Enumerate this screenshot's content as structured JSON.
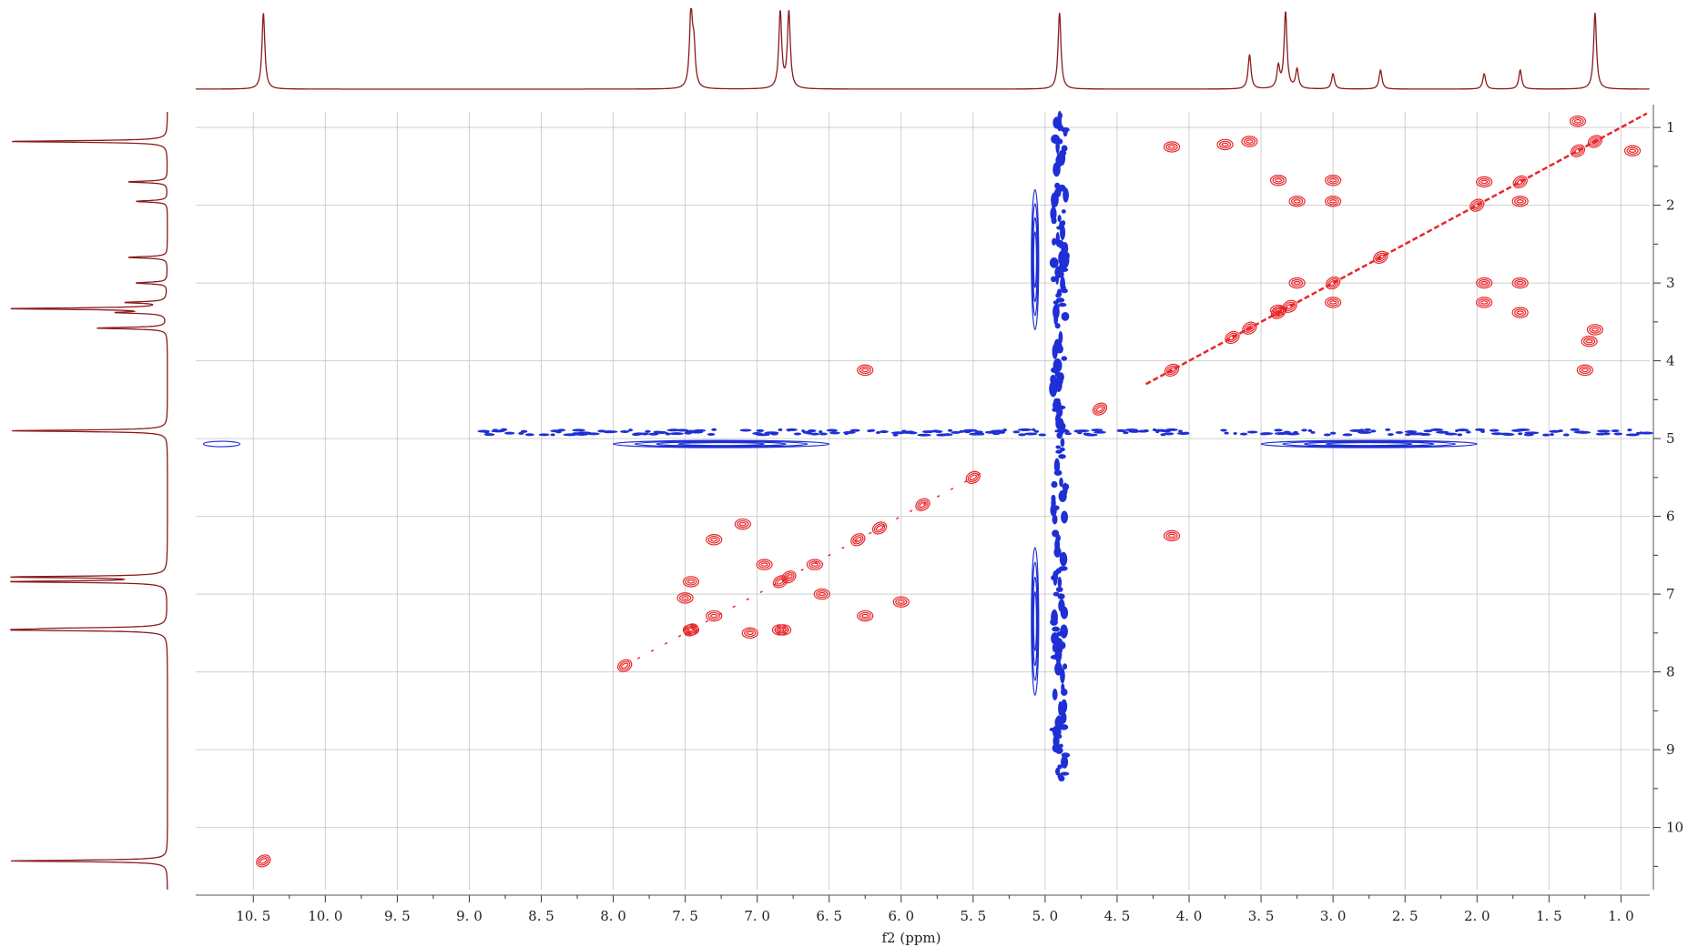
{
  "chart_data": {
    "type": "2d-nmr-cosy",
    "axes": {
      "f2": {
        "title": "f2 (ppm)",
        "range": [
          10.9,
          0.8
        ],
        "ticks": [
          10.5,
          10.0,
          9.5,
          9.0,
          8.5,
          8.0,
          7.5,
          7.0,
          6.5,
          6.0,
          5.5,
          5.0,
          4.5,
          4.0,
          3.5,
          3.0,
          2.5,
          2.0,
          1.5,
          1.0
        ],
        "tick_labels": [
          "10. 5",
          "10. 0",
          "9. 5",
          "9. 0",
          "8. 5",
          "8. 0",
          "7. 5",
          "7. 0",
          "6. 5",
          "6. 0",
          "5. 5",
          "5. 0",
          "4. 5",
          "4. 0",
          "3. 5",
          "3. 0",
          "2. 5",
          "2. 0",
          "1. 5",
          "1. 0"
        ]
      },
      "f1": {
        "title": "",
        "range": [
          0.8,
          10.8
        ],
        "ticks": [
          1,
          2,
          3,
          4,
          5,
          6,
          7,
          8,
          9,
          10
        ],
        "tick_labels": [
          "1",
          "2",
          "3",
          "4",
          "5",
          "6",
          "7",
          "8",
          "9",
          "10"
        ]
      }
    },
    "grid": true,
    "colors": {
      "positive_contour": "#e8262a",
      "negative_contour": "#1e2fd6",
      "projection": "#8b1a1a",
      "grid": "#cfcfcf"
    },
    "projection_1d_peaks": [
      {
        "ppm": 10.43,
        "intensity": 1.0
      },
      {
        "ppm": 7.46,
        "intensity": 1.0
      },
      {
        "ppm": 7.44,
        "intensity": 0.5
      },
      {
        "ppm": 6.84,
        "intensity": 1.0
      },
      {
        "ppm": 6.78,
        "intensity": 1.0
      },
      {
        "ppm": 4.9,
        "intensity": 1.0
      },
      {
        "ppm": 3.58,
        "intensity": 0.45
      },
      {
        "ppm": 3.38,
        "intensity": 0.28
      },
      {
        "ppm": 3.33,
        "intensity": 1.0
      },
      {
        "ppm": 3.25,
        "intensity": 0.25
      },
      {
        "ppm": 3.0,
        "intensity": 0.2
      },
      {
        "ppm": 2.67,
        "intensity": 0.25
      },
      {
        "ppm": 1.95,
        "intensity": 0.2
      },
      {
        "ppm": 1.7,
        "intensity": 0.25
      },
      {
        "ppm": 1.18,
        "intensity": 1.0
      }
    ],
    "diagonal_peaks": [
      10.43,
      7.92,
      7.46,
      6.84,
      6.78,
      6.3,
      6.15,
      5.85,
      5.5,
      4.62,
      4.12,
      3.7,
      3.58,
      3.38,
      3.3,
      3.0,
      2.67,
      2.0,
      1.7,
      1.3,
      1.18
    ],
    "cross_peaks": [
      {
        "f2": 7.46,
        "f1": 6.84
      },
      {
        "f2": 6.84,
        "f1": 7.46
      },
      {
        "f2": 7.46,
        "f1": 7.46
      },
      {
        "f2": 6.82,
        "f1": 7.46
      },
      {
        "f2": 7.3,
        "f1": 6.3
      },
      {
        "f2": 6.95,
        "f1": 6.62
      },
      {
        "f2": 6.6,
        "f1": 6.62
      },
      {
        "f2": 6.55,
        "f1": 7.0
      },
      {
        "f2": 7.05,
        "f1": 7.5
      },
      {
        "f2": 7.3,
        "f1": 7.28
      },
      {
        "f2": 7.5,
        "f1": 7.05
      },
      {
        "f2": 6.25,
        "f1": 7.28
      },
      {
        "f2": 6.0,
        "f1": 7.1
      },
      {
        "f2": 7.1,
        "f1": 6.1
      },
      {
        "f2": 3.75,
        "f1": 1.22
      },
      {
        "f2": 3.58,
        "f1": 1.18
      },
      {
        "f2": 4.12,
        "f1": 1.25
      },
      {
        "f2": 3.38,
        "f1": 1.68
      },
      {
        "f2": 3.25,
        "f1": 1.95
      },
      {
        "f2": 3.0,
        "f1": 1.68
      },
      {
        "f2": 3.0,
        "f1": 1.95
      },
      {
        "f2": 1.95,
        "f1": 1.7
      },
      {
        "f2": 1.7,
        "f1": 1.95
      },
      {
        "f2": 1.95,
        "f1": 3.0
      },
      {
        "f2": 1.7,
        "f1": 3.0
      },
      {
        "f2": 1.95,
        "f1": 3.25
      },
      {
        "f2": 1.7,
        "f1": 3.38
      },
      {
        "f2": 3.25,
        "f1": 3.0
      },
      {
        "f2": 3.0,
        "f1": 3.25
      },
      {
        "f2": 3.38,
        "f1": 3.35
      },
      {
        "f2": 1.18,
        "f1": 3.6
      },
      {
        "f2": 1.22,
        "f1": 3.75
      },
      {
        "f2": 1.25,
        "f1": 4.12
      },
      {
        "f2": 1.3,
        "f1": 0.92
      },
      {
        "f2": 0.92,
        "f1": 1.3
      },
      {
        "f2": 6.25,
        "f1": 4.12
      },
      {
        "f2": 4.12,
        "f1": 6.25
      }
    ],
    "solvent_artifacts": [
      {
        "type": "vertical_ridge",
        "f2": 4.9,
        "f1_range": [
          0.85,
          9.4
        ]
      },
      {
        "type": "horizontal_ridge",
        "f1": 4.92,
        "f2_range": [
          10.9,
          0.8
        ]
      },
      {
        "type": "horizontal_band",
        "f1": 5.07,
        "f2_range": [
          8.0,
          6.5
        ]
      },
      {
        "type": "horizontal_band",
        "f1": 5.07,
        "f2_range": [
          3.5,
          2.0
        ]
      },
      {
        "type": "vertical_band",
        "f2": 5.07,
        "f1_range": [
          1.8,
          3.6
        ]
      },
      {
        "type": "vertical_band",
        "f2": 5.07,
        "f1_range": [
          6.4,
          8.3
        ]
      }
    ]
  }
}
